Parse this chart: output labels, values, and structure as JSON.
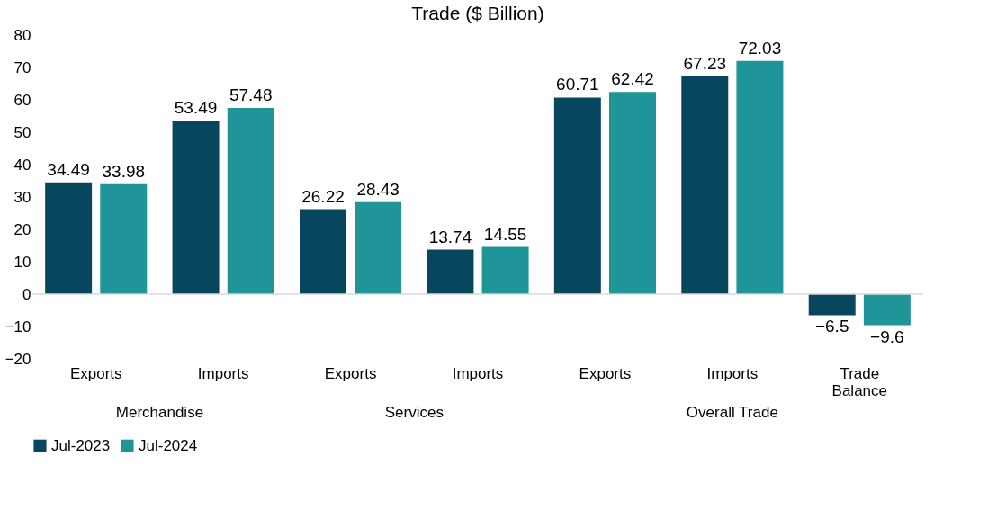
{
  "chart_data": {
    "type": "bar",
    "title": "Trade ($ Billion)",
    "categories": [
      "Exports",
      "Imports",
      "Exports",
      "Imports",
      "Exports",
      "Imports",
      "Trade Balance"
    ],
    "series": [
      {
        "name": "Jul-2023",
        "color": "#07465e",
        "values": [
          34.49,
          53.49,
          26.22,
          13.74,
          60.71,
          67.23,
          -6.5
        ]
      },
      {
        "name": "Jul-2024",
        "color": "#1f9499",
        "values": [
          33.98,
          57.48,
          28.43,
          14.55,
          62.42,
          72.03,
          -9.6
        ]
      }
    ],
    "annotations": [
      "Merchandise",
      "Services",
      "Overall Trade"
    ],
    "ylim": [
      -20,
      80
    ],
    "yticks": [
      -20,
      -10,
      0,
      10,
      20,
      30,
      40,
      50,
      60,
      70,
      80
    ],
    "ref_lines": [
      {
        "axis": "y",
        "value": 0,
        "color": "#d9d9d9"
      }
    ],
    "data_labels": true,
    "grid": false,
    "legend": "bottom"
  }
}
